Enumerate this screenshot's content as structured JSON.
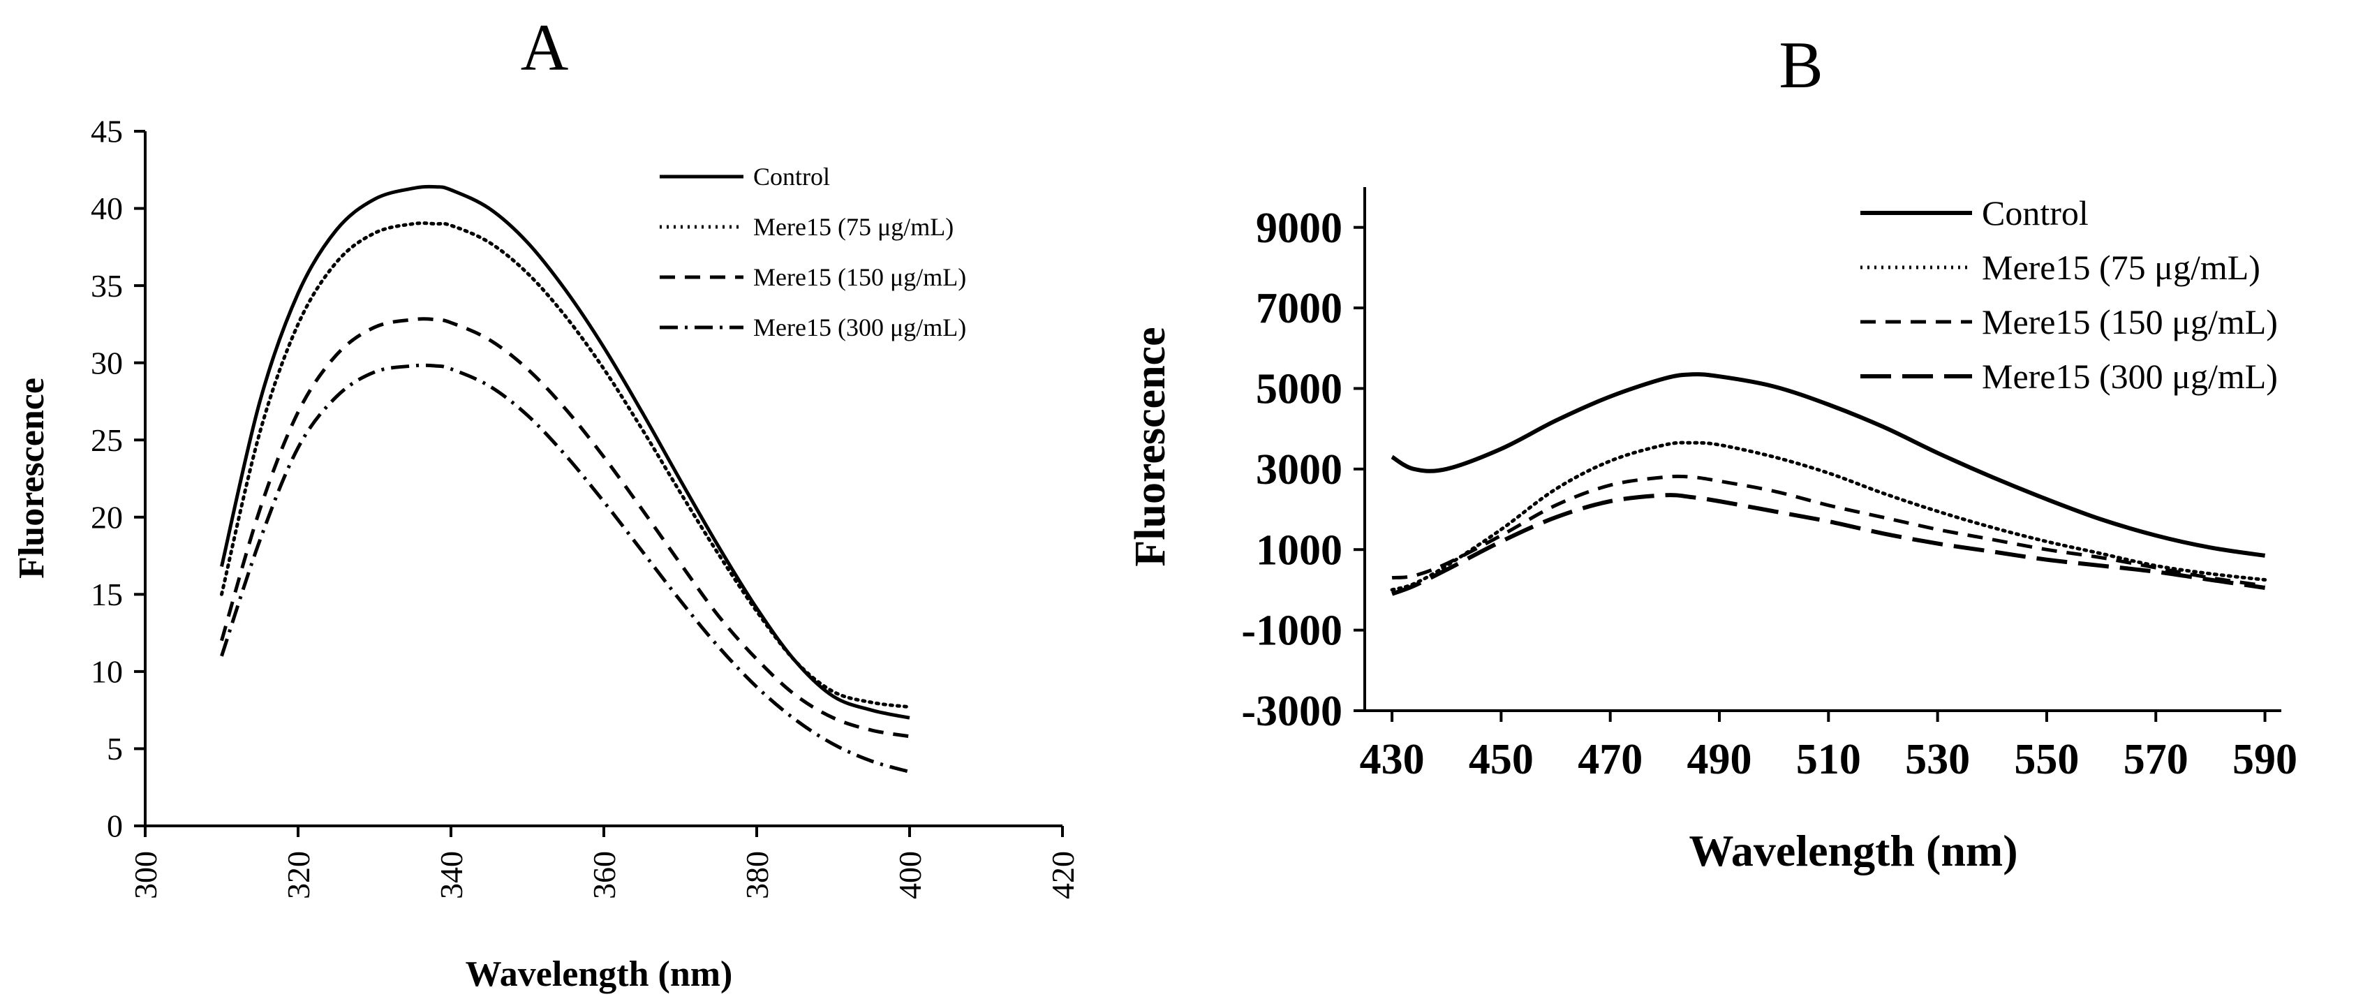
{
  "figure": {
    "background": "#ffffff",
    "line_color": "#000000"
  },
  "chart_data": [
    {
      "panel": "A",
      "type": "line",
      "title": "A",
      "xlabel": "Wavelength (nm)",
      "ylabel": "Fluorescence",
      "xlim": [
        300,
        420
      ],
      "ylim": [
        0,
        45
      ],
      "xticks": [
        300,
        320,
        340,
        360,
        380,
        400,
        420
      ],
      "yticks": [
        0,
        5,
        10,
        15,
        20,
        25,
        30,
        35,
        40,
        45
      ],
      "grid": false,
      "legend_position": "top-right",
      "x": [
        310,
        315,
        320,
        325,
        330,
        335,
        338,
        340,
        345,
        350,
        355,
        360,
        365,
        370,
        375,
        380,
        385,
        390,
        395,
        400
      ],
      "series": [
        {
          "name": "Control",
          "style": "solid",
          "values": [
            16.8,
            27.5,
            34.5,
            38.6,
            40.6,
            41.3,
            41.4,
            41.2,
            40.0,
            37.8,
            34.7,
            31.0,
            26.8,
            22.4,
            18.1,
            14.1,
            10.7,
            8.4,
            7.5,
            7.0
          ]
        },
        {
          "name": "Mere15 (75 μg/mL)",
          "style": "dotted",
          "values": [
            15.0,
            25.5,
            32.5,
            36.5,
            38.4,
            39.0,
            39.0,
            38.9,
            37.8,
            35.8,
            33.0,
            29.6,
            25.7,
            21.6,
            17.6,
            13.9,
            10.7,
            8.7,
            8.0,
            7.7
          ]
        },
        {
          "name": "Mere15 (150 μg/mL)",
          "style": "dashed",
          "values": [
            12.0,
            20.5,
            26.8,
            30.5,
            32.3,
            32.8,
            32.8,
            32.6,
            31.5,
            29.6,
            27.0,
            23.9,
            20.5,
            17.0,
            13.6,
            10.8,
            8.5,
            7.0,
            6.2,
            5.8
          ]
        },
        {
          "name": "Mere15 (300 μg/mL)",
          "style": "dashdot",
          "values": [
            11.0,
            18.5,
            24.5,
            27.8,
            29.4,
            29.8,
            29.8,
            29.6,
            28.5,
            26.6,
            24.0,
            21.0,
            17.8,
            14.6,
            11.6,
            9.0,
            6.9,
            5.3,
            4.2,
            3.5
          ]
        }
      ]
    },
    {
      "panel": "B",
      "type": "line",
      "title": "B",
      "xlabel": "Wavelength (nm)",
      "ylabel": "Fluorescence",
      "xlim": [
        425,
        593
      ],
      "ylim": [
        -3000,
        10000
      ],
      "xticks": [
        430,
        450,
        470,
        490,
        510,
        530,
        550,
        570,
        590
      ],
      "yticks": [
        -3000,
        -1000,
        1000,
        3000,
        5000,
        7000,
        9000
      ],
      "grid": false,
      "legend_position": "top-right",
      "x": [
        430,
        434,
        440,
        450,
        460,
        470,
        480,
        485,
        490,
        500,
        510,
        520,
        530,
        540,
        550,
        560,
        570,
        580,
        590
      ],
      "series": [
        {
          "name": "Control",
          "style": "solid",
          "values": [
            3300,
            3000,
            3000,
            3500,
            4200,
            4800,
            5250,
            5350,
            5300,
            5050,
            4600,
            4050,
            3400,
            2800,
            2250,
            1750,
            1350,
            1050,
            850
          ]
        },
        {
          "name": "Mere15 (75 μg/mL)",
          "style": "dotted",
          "values": [
            0,
            150,
            600,
            1500,
            2500,
            3200,
            3600,
            3650,
            3600,
            3300,
            2900,
            2400,
            1950,
            1550,
            1200,
            900,
            600,
            400,
            250
          ]
        },
        {
          "name": "Mere15 (150 μg/mL)",
          "style": "dashed",
          "values": [
            300,
            350,
            650,
            1350,
            2100,
            2600,
            2800,
            2800,
            2700,
            2450,
            2100,
            1800,
            1500,
            1250,
            1000,
            800,
            550,
            300,
            100
          ]
        },
        {
          "name": "Mere15 (300 μg/mL)",
          "style": "longdash",
          "values": [
            -100,
            100,
            500,
            1200,
            1800,
            2200,
            2350,
            2300,
            2200,
            1950,
            1700,
            1400,
            1150,
            950,
            750,
            600,
            450,
            250,
            50
          ]
        }
      ]
    }
  ]
}
